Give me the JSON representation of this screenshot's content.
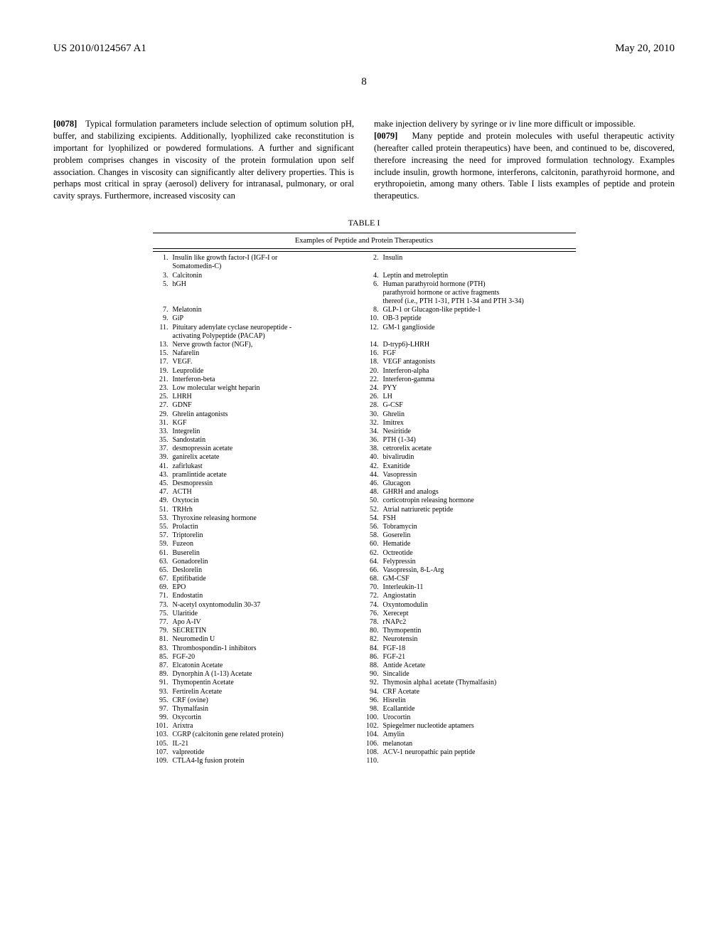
{
  "header": {
    "left": "US 2010/0124567 A1",
    "right": "May 20, 2010"
  },
  "page_number": "8",
  "left_column": {
    "para_num": "[0078]",
    "text": "Typical formulation parameters include selection of optimum solution pH, buffer, and stabilizing excipients. Additionally, lyophilized cake reconstitution is important for lyophilized or powdered formulations. A further and significant problem comprises changes in viscosity of the protein formulation upon self association. Changes in viscosity can significantly alter delivery properties. This is perhaps most critical in spray (aerosol) delivery for intranasal, pulmonary, or oral cavity sprays. Furthermore, increased viscosity can"
  },
  "right_column": {
    "lead_text": "make injection delivery by syringe or iv line more difficult or impossible.",
    "para_num": "[0079]",
    "text": "Many peptide and protein molecules with useful therapeutic activity (hereafter called protein therapeutics) have been, and continued to be, discovered, therefore increasing the need for improved formulation technology. Examples include insulin, growth hormone, interferons, calcitonin, parathyroid hormone, and erythropoietin, among many others. Table I lists examples of peptide and protein therapeutics."
  },
  "table": {
    "caption": "TABLE I",
    "subcaption": "Examples of Peptide and Protein Therapeutics",
    "rows": [
      {
        "ln": "1.",
        "lt": "Insulin like growth factor-I (IGF-I or",
        "rn": "2.",
        "rt": "Insulin"
      },
      {
        "ln": "",
        "lt": "Somatomedin-C)",
        "rn": "",
        "rt": ""
      },
      {
        "ln": "3.",
        "lt": "Calcitonin",
        "rn": "4.",
        "rt": "Leptin and metroleptin"
      },
      {
        "ln": "5.",
        "lt": "hGH",
        "rn": "6.",
        "rt": "Human parathyroid hormone (PTH)"
      },
      {
        "ln": "",
        "lt": "",
        "rn": "",
        "rt": "parathyroid hormone or active fragments"
      },
      {
        "ln": "",
        "lt": "",
        "rn": "",
        "rt": "thereof (i.e., PTH 1-31, PTH 1-34 and PTH 3-34)"
      },
      {
        "ln": "7.",
        "lt": "Melatonin",
        "rn": "8.",
        "rt": "GLP-1 or Glucagon-like peptide-1"
      },
      {
        "ln": "9.",
        "lt": "GiP",
        "rn": "10.",
        "rt": "OB-3 peptide"
      },
      {
        "ln": "11.",
        "lt": "Pituitary adenylate cyclase neuropeptide -",
        "rn": "12.",
        "rt": "GM-1 ganglioside"
      },
      {
        "ln": "",
        "lt": "activating Polypeptide (PACAP)",
        "rn": "",
        "rt": ""
      },
      {
        "ln": "13.",
        "lt": "Nerve growth factor (NGF),",
        "rn": "14.",
        "rt": "D-tryp6)-LHRH"
      },
      {
        "ln": "15.",
        "lt": "Nafarelin",
        "rn": "16.",
        "rt": "FGF"
      },
      {
        "ln": "17.",
        "lt": "VEGF.",
        "rn": "18.",
        "rt": "VEGF antagonists"
      },
      {
        "ln": "19.",
        "lt": "Leuprolide",
        "rn": "20.",
        "rt": "Interferon-alpha"
      },
      {
        "ln": "21.",
        "lt": "Interferon-beta",
        "rn": "22.",
        "rt": "Interferon-gamma"
      },
      {
        "ln": "23.",
        "lt": "Low molecular weight heparin",
        "rn": "24.",
        "rt": "PYY"
      },
      {
        "ln": "25.",
        "lt": "LHRH",
        "rn": "26.",
        "rt": "LH"
      },
      {
        "ln": "27.",
        "lt": "GDNF",
        "rn": "28.",
        "rt": "G-CSF"
      },
      {
        "ln": "29.",
        "lt": "Ghrelin antagonists",
        "rn": "30.",
        "rt": "Ghrelin"
      },
      {
        "ln": "31.",
        "lt": "KGF",
        "rn": "32.",
        "rt": "Imitrex"
      },
      {
        "ln": "33.",
        "lt": "Integrelin",
        "rn": "34.",
        "rt": "Nesiritide"
      },
      {
        "ln": "35.",
        "lt": "Sandostatin",
        "rn": "36.",
        "rt": "PTH (1-34)"
      },
      {
        "ln": "37.",
        "lt": "desmopressin acetate",
        "rn": "38.",
        "rt": "cetrorelix acetate"
      },
      {
        "ln": "39.",
        "lt": "ganirelix acetate",
        "rn": "40.",
        "rt": "bivalirudin"
      },
      {
        "ln": "41.",
        "lt": "zafirlukast",
        "rn": "42.",
        "rt": "Exanitide"
      },
      {
        "ln": "43.",
        "lt": "pramlintide acetate",
        "rn": "44.",
        "rt": "Vasopressin"
      },
      {
        "ln": "45.",
        "lt": "Desmopressin",
        "rn": "46.",
        "rt": "Glucagon"
      },
      {
        "ln": "47.",
        "lt": "ACTH",
        "rn": "48.",
        "rt": "GHRH and analogs"
      },
      {
        "ln": "49.",
        "lt": "Oxytocin",
        "rn": "50.",
        "rt": "corticotropin releasing hormone"
      },
      {
        "ln": "51.",
        "lt": "TRHrh",
        "rn": "52.",
        "rt": "Atrial natriuretic peptide"
      },
      {
        "ln": "53.",
        "lt": "Thyroxine releasing hormone",
        "rn": "54.",
        "rt": "FSH"
      },
      {
        "ln": "55.",
        "lt": "Prolactin",
        "rn": "56.",
        "rt": "Tobramycin"
      },
      {
        "ln": "57.",
        "lt": "Triptorelin",
        "rn": "58.",
        "rt": "Goserelin"
      },
      {
        "ln": "59.",
        "lt": "Fuzeon",
        "rn": "60.",
        "rt": "Hematide"
      },
      {
        "ln": "61.",
        "lt": "Buserelin",
        "rn": "62.",
        "rt": "Octreotide"
      },
      {
        "ln": "63.",
        "lt": "Gonadorelin",
        "rn": "64.",
        "rt": "Felypressin"
      },
      {
        "ln": "65.",
        "lt": "Deslorelin",
        "rn": "66.",
        "rt": "Vasopressin, 8-L-Arg"
      },
      {
        "ln": "67.",
        "lt": "Eptifibatide",
        "rn": "68.",
        "rt": "GM-CSF"
      },
      {
        "ln": "69.",
        "lt": "EPO",
        "rn": "70.",
        "rt": "Interleukin-11"
      },
      {
        "ln": "71.",
        "lt": "Endostatin",
        "rn": "72.",
        "rt": "Angiostatin"
      },
      {
        "ln": "73.",
        "lt": "N-acetyl oxyntomodulin 30-37",
        "rn": "74.",
        "rt": "Oxyntomodulin"
      },
      {
        "ln": "75.",
        "lt": "Ularitide",
        "rn": "76.",
        "rt": "Xerecept"
      },
      {
        "ln": "77.",
        "lt": "Apo A-IV",
        "rn": "78.",
        "rt": "rNAPc2"
      },
      {
        "ln": "79.",
        "lt": "SECRETIN",
        "rn": "80.",
        "rt": "Thymopentin"
      },
      {
        "ln": "81.",
        "lt": "Neuromedin U",
        "rn": "82.",
        "rt": "Neurotensin"
      },
      {
        "ln": "83.",
        "lt": "Thrombospondin-1 inhibitors",
        "rn": "84.",
        "rt": "FGF-18"
      },
      {
        "ln": "85.",
        "lt": "FGF-20",
        "rn": "86.",
        "rt": "FGF-21"
      },
      {
        "ln": "87.",
        "lt": "Elcatonin Acetate",
        "rn": "88.",
        "rt": "Antide Acetate"
      },
      {
        "ln": "89.",
        "lt": "Dynorphin A (1-13) Acetate",
        "rn": "90.",
        "rt": "Sincalide"
      },
      {
        "ln": "91.",
        "lt": "Thymopentin Acetate",
        "rn": "92.",
        "rt": "Thymosin alpha1 acetate (Thymalfasin)"
      },
      {
        "ln": "93.",
        "lt": "Fertirelin Acetate",
        "rn": "94.",
        "rt": "CRF Acetate"
      },
      {
        "ln": "95.",
        "lt": "CRF (ovine)",
        "rn": "96.",
        "rt": "Hisrelin"
      },
      {
        "ln": "97.",
        "lt": "Thymalfasin",
        "rn": "98.",
        "rt": "Ecallantide"
      },
      {
        "ln": "99.",
        "lt": "Oxycortin",
        "rn": "100.",
        "rt": "Urocortin"
      },
      {
        "ln": "101.",
        "lt": "Arixtra",
        "rn": "102.",
        "rt": "Spiegelmer nucleotide aptamers"
      },
      {
        "ln": "103.",
        "lt": "CGRP (calcitonin gene related protein)",
        "rn": "104.",
        "rt": "Amylin"
      },
      {
        "ln": "105.",
        "lt": "IL-21",
        "rn": "106.",
        "rt": "melanotan"
      },
      {
        "ln": "107.",
        "lt": "valpreotide",
        "rn": "108.",
        "rt": "ACV-1 neuropathic pain peptide"
      },
      {
        "ln": "109.",
        "lt": "CTLA4-Ig fusion protein",
        "rn": "110.",
        "rt": ""
      }
    ]
  }
}
